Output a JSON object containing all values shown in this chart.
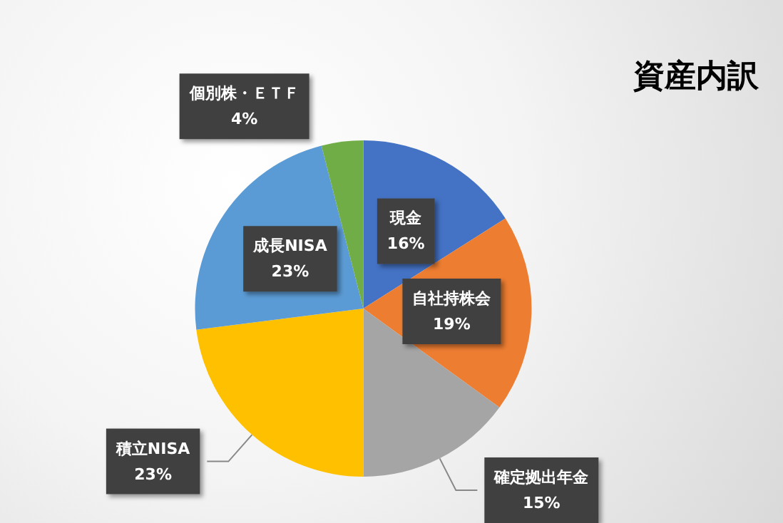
{
  "chart_data": {
    "type": "pie",
    "title": "資産内訳",
    "categories": [
      "現金",
      "自社持株会",
      "確定拠出年金",
      "積立NISA",
      "成長NISA",
      "個別株・ＥＴＦ"
    ],
    "values": [
      16,
      19,
      15,
      23,
      23,
      4
    ],
    "value_labels": [
      "16%",
      "19%",
      "15%",
      "23%",
      "23%",
      "4%"
    ],
    "colors": [
      "#4472c4",
      "#ed7d31",
      "#a5a5a5",
      "#ffc000",
      "#5b9bd5",
      "#70ad47"
    ],
    "legend": false
  }
}
